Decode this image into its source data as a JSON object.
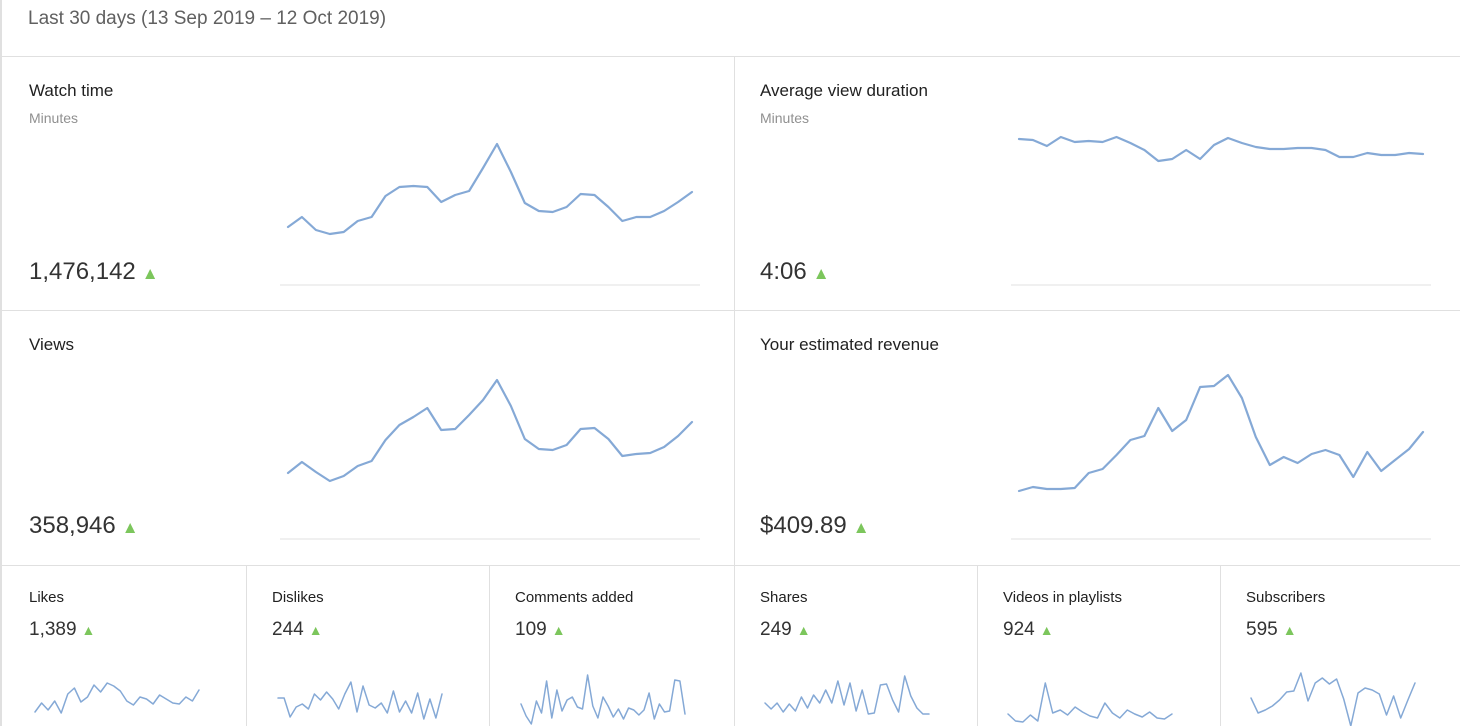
{
  "header": {
    "date_range": "Last 30 days (13 Sep 2019 – 12 Oct 2019)"
  },
  "trend_symbol": "▲",
  "colors": {
    "line": "#85a9d6",
    "up": "#7cc65c",
    "divider": "#e0e0e0"
  },
  "cards": [
    {
      "title": "Watch time",
      "subtitle": "Minutes",
      "value": "1,476,142",
      "trend": "up",
      "sparkline": [
        227,
        217,
        230,
        234,
        232,
        221,
        217,
        196,
        187,
        186,
        187,
        202,
        195,
        191,
        168,
        144,
        172,
        203,
        211,
        212,
        207,
        194,
        195,
        207,
        221,
        217,
        217,
        211,
        202,
        192
      ]
    },
    {
      "title": "Average view duration",
      "subtitle": "Minutes",
      "value": "4:06",
      "trend": "up",
      "sparkline": [
        139,
        140,
        146,
        137,
        142,
        141,
        142,
        137,
        143,
        150,
        161,
        159,
        150,
        159,
        145,
        138,
        143,
        147,
        149,
        149,
        148,
        148,
        150,
        157,
        157,
        153,
        155,
        155,
        153,
        154
      ]
    },
    {
      "title": "Views",
      "subtitle": "",
      "value": "358,946",
      "trend": "up",
      "sparkline": [
        473,
        462,
        472,
        481,
        476,
        466,
        461,
        440,
        425,
        417,
        408,
        430,
        429,
        415,
        400,
        380,
        406,
        439,
        449,
        450,
        445,
        429,
        428,
        439,
        456,
        454,
        453,
        447,
        436,
        422
      ]
    },
    {
      "title": "Your estimated revenue",
      "subtitle": "",
      "value": "$409.89",
      "trend": "up",
      "sparkline": [
        491,
        487,
        489,
        489,
        488,
        473,
        469,
        455,
        440,
        436,
        408,
        431,
        420,
        387,
        386,
        375,
        398,
        437,
        465,
        457,
        463,
        454,
        450,
        455,
        477,
        452,
        471,
        460,
        449,
        432
      ]
    }
  ],
  "metrics": [
    {
      "title": "Likes",
      "value": "1,389",
      "trend": "up",
      "sparkline": [
        712,
        703,
        710,
        701,
        713,
        694,
        688,
        702,
        697,
        685,
        692,
        683,
        686,
        691,
        701,
        705,
        697,
        699,
        704,
        695,
        699,
        703,
        704,
        697,
        701,
        690
      ]
    },
    {
      "title": "Dislikes",
      "value": "244",
      "trend": "up",
      "sparkline": [
        698,
        698,
        717,
        707,
        704,
        709,
        694,
        700,
        692,
        699,
        709,
        694,
        682,
        712,
        686,
        705,
        708,
        703,
        713,
        691,
        712,
        701,
        713,
        693,
        719,
        699,
        718,
        694
      ]
    },
    {
      "title": "Comments added",
      "value": "109",
      "trend": "up",
      "sparkline": [
        704,
        716,
        724,
        701,
        713,
        681,
        718,
        690,
        711,
        700,
        697,
        707,
        709,
        675,
        706,
        718,
        697,
        706,
        717,
        709,
        719,
        708,
        710,
        715,
        710,
        693,
        719,
        704,
        712,
        711,
        680,
        681,
        714
      ]
    },
    {
      "title": "Shares",
      "value": "249",
      "trend": "up",
      "sparkline": [
        703,
        709,
        703,
        712,
        704,
        711,
        697,
        708,
        695,
        703,
        690,
        703,
        681,
        705,
        683,
        711,
        690,
        714,
        713,
        685,
        684,
        700,
        712,
        676,
        696,
        708,
        714,
        714
      ]
    },
    {
      "title": "Videos in playlists",
      "value": "924",
      "trend": "up",
      "sparkline": [
        714,
        721,
        722,
        715,
        721,
        683,
        713,
        710,
        715,
        707,
        712,
        716,
        718,
        703,
        713,
        718,
        710,
        714,
        717,
        712,
        718,
        719,
        714
      ]
    },
    {
      "title": "Subscribers",
      "value": "595",
      "trend": "up",
      "sparkline": [
        698,
        713,
        710,
        706,
        700,
        692,
        691,
        673,
        701,
        683,
        678,
        684,
        679,
        699,
        726,
        693,
        688,
        690,
        694,
        715,
        696,
        718,
        700,
        683
      ]
    }
  ]
}
